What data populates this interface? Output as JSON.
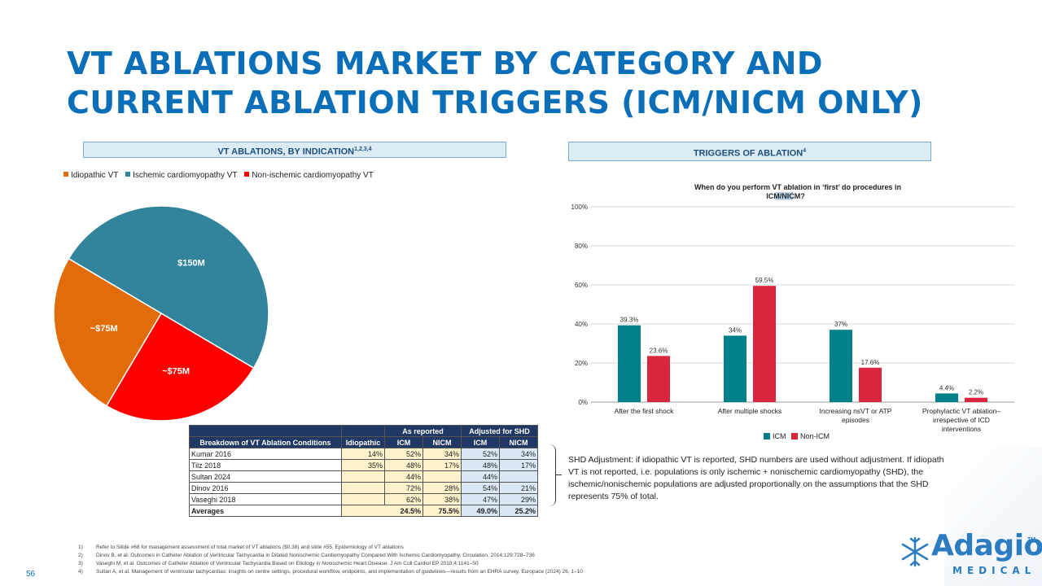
{
  "slide": {
    "title": "VT ABLATIONS MARKET BY CATEGORY AND CURRENT ABLATION TRIGGERS (ICM/NICM ONLY)",
    "page_number": "56",
    "accent_color": "#0a6fb8"
  },
  "left_header": {
    "text": "VT ABLATIONS, BY INDICATION",
    "sup": "1,2,3,4"
  },
  "right_header": {
    "text": "TRIGGERS OF ABLATION",
    "sup": "4"
  },
  "legend": [
    {
      "label": "Idiopathic VT",
      "color": "#e26b0a"
    },
    {
      "label": "Ischemic cardiomyopathy VT",
      "color": "#31849b"
    },
    {
      "label": "Non-ischemic cardiomyopathy VT",
      "color": "#ff0000"
    }
  ],
  "chart_data": [
    {
      "type": "pie",
      "categories": [
        "Ischemic cardiomyopathy VT",
        "Non-ischemic cardiomyopathy VT",
        "Idiopathic VT"
      ],
      "values": [
        150,
        75,
        75
      ],
      "data_labels": [
        "$150M",
        "~$75M",
        "~$75M"
      ],
      "colors": [
        "#31849b",
        "#ff0000",
        "#e26b0a"
      ]
    },
    {
      "type": "bar",
      "title_line1": "When do you perform VT ablation in ‘first’ do procedures in",
      "title_line2": "ICM/NICM?",
      "categories": [
        [
          "After the first shock"
        ],
        [
          "After multiple shocks"
        ],
        [
          "Increasing nsVT or ATP",
          "episodes"
        ],
        [
          "Prophylactic VT ablation–",
          "irrespective of ICD",
          "interventions"
        ]
      ],
      "series": [
        {
          "name": "ICM",
          "values": [
            39.3,
            34,
            37,
            4.4
          ],
          "labels": [
            "39.3%",
            "34%",
            "37%",
            "4.4%"
          ],
          "color": "#00808a"
        },
        {
          "name": "Non-ICM",
          "values": [
            23.6,
            59.5,
            17.6,
            2.2
          ],
          "labels": [
            "23.6%",
            "59.5%",
            "17.6%",
            "2.2%"
          ],
          "color": "#d9263d"
        }
      ],
      "y_ticks": [
        "0%",
        "20%",
        "40%",
        "60%",
        "80%",
        "100%"
      ],
      "ylim": [
        0,
        100
      ],
      "grid": true,
      "legend_position": "bottom"
    }
  ],
  "table": {
    "group_headers": [
      "As reported",
      "Adjusted for SHD"
    ],
    "columns": [
      "Breakdown of VT Ablation Conditions",
      "Idiopathic",
      "ICM",
      "NICM",
      "ICM",
      "NICM"
    ],
    "rows": [
      {
        "name": "Kumar 2016",
        "cells": [
          "14%",
          "52%",
          "34%",
          "52%",
          "34%"
        ]
      },
      {
        "name": "Tilz 2018",
        "cells": [
          "35%",
          "48%",
          "17%",
          "48%",
          "17%"
        ]
      },
      {
        "name": "Sultan 2024",
        "cells": [
          "",
          "44%",
          "",
          "44%",
          ""
        ]
      },
      {
        "name": "Dinov 2016",
        "cells": [
          "",
          "72%",
          "28%",
          "54%",
          "21%"
        ]
      },
      {
        "name": "Vaseghi 2018",
        "cells": [
          "",
          "62%",
          "38%",
          "47%",
          "29%"
        ]
      }
    ],
    "averages": {
      "name": "Averages",
      "cells": [
        "24.5%",
        "75.5%",
        "49.0%",
        "25.2%"
      ]
    }
  },
  "shd_note": "SHD Adjustment: if idiopathic VT is reported, SHD numbers are used without adjustment. If idiopathic VT is not reported, i.e. populations is only ischemic + nonischemic cardiomyopathy (SHD), the ischemic/nonischemic populations are adjusted proportionally on the assumptions that the SHD represents 75% of total.",
  "footnotes": [
    {
      "n": "1)",
      "text": "Refer to Slilde #68 for management assessment of total market of VT ablations ($0.38) and slide #55, Epidemiology of VT ablations"
    },
    {
      "n": "2)",
      "text": "Dinov B, et al. Outcomes in Catheter Ablation of Ventricular Tachycardia in Dilated Nonischemic Cardiomyopathy Compared With Ischemic Cardiomyopathy. Circulation. 2014;129:728–736"
    },
    {
      "n": "3)",
      "text": "Vaseghi M, et al. Outcomes of Catheter Ablation of Ventricular Tachycardia Based on Etiology in Nonischemic Heart Disease. J Am Coll Cardiol EP 2018;4:1141–50"
    },
    {
      "n": "4)",
      "text": "Sultan A, et al. Management of ventricular tachycardias: insights on centre settings, procedural workflow, endpoints, and implementation of guidelines—results from an EHRA survey. Europace (2024) 26, 1–10"
    }
  ],
  "logo": {
    "word": "Adagio",
    "sub": "MEDICAL",
    "tm": "TM",
    "color": "#2b7cc0"
  }
}
